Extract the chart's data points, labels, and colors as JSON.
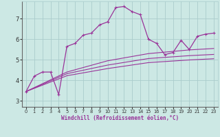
{
  "xlabel": "Windchill (Refroidissement éolien,°C)",
  "background_color": "#cce8e4",
  "grid_color": "#aacccc",
  "line_color": "#993399",
  "xlim": [
    -0.5,
    23.5
  ],
  "ylim": [
    2.7,
    7.85
  ],
  "yticks": [
    3,
    4,
    5,
    6,
    7
  ],
  "xticks": [
    0,
    1,
    2,
    3,
    4,
    5,
    6,
    7,
    8,
    9,
    10,
    11,
    12,
    13,
    14,
    15,
    16,
    17,
    18,
    19,
    20,
    21,
    22,
    23
  ],
  "series": [
    {
      "x": [
        0,
        1,
        2,
        3,
        4,
        5,
        6,
        7,
        8,
        9,
        10,
        11,
        12,
        13,
        14,
        15,
        16,
        17,
        18,
        19,
        20,
        21,
        22,
        23
      ],
      "y": [
        3.45,
        4.2,
        4.4,
        4.4,
        3.3,
        5.65,
        5.8,
        6.2,
        6.3,
        6.7,
        6.85,
        7.55,
        7.6,
        7.35,
        7.2,
        6.0,
        5.8,
        5.25,
        5.35,
        5.95,
        5.5,
        6.15,
        6.25,
        6.3
      ],
      "marker": "+"
    },
    {
      "x": [
        0,
        5,
        10,
        15,
        20,
        23
      ],
      "y": [
        3.45,
        4.4,
        4.95,
        5.3,
        5.48,
        5.55
      ],
      "marker": null
    },
    {
      "x": [
        0,
        5,
        10,
        15,
        20,
        23
      ],
      "y": [
        3.45,
        4.32,
        4.74,
        5.06,
        5.2,
        5.26
      ],
      "marker": null
    },
    {
      "x": [
        0,
        5,
        10,
        15,
        20,
        23
      ],
      "y": [
        3.45,
        4.22,
        4.57,
        4.86,
        4.99,
        5.05
      ],
      "marker": null
    }
  ]
}
